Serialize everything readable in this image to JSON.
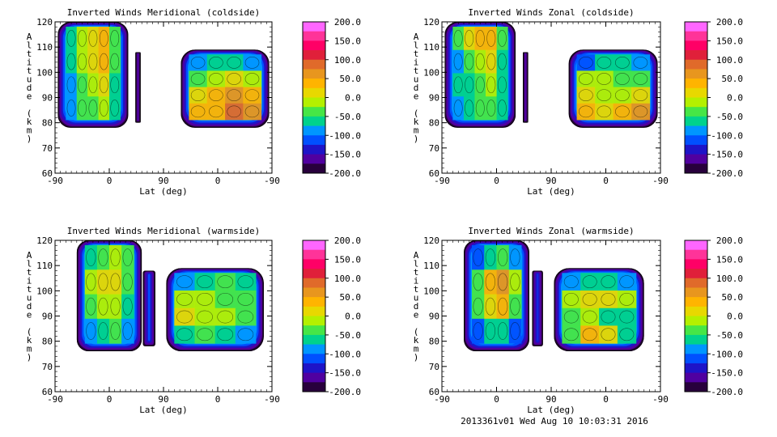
{
  "colorbar": {
    "labels": [
      "200.0",
      "150.0",
      "100.0",
      "50.0",
      "0.0",
      "-50.0",
      "-100.0",
      "-150.0",
      "-200.0"
    ],
    "colors": [
      "#ff66ff",
      "#ff3399",
      "#ff0066",
      "#e0203a",
      "#e06a2a",
      "#e8961e",
      "#ffb400",
      "#e8d800",
      "#b4f000",
      "#46e646",
      "#00d28c",
      "#0096ff",
      "#0050ff",
      "#1e14c8",
      "#5000a0",
      "#28003c"
    ]
  },
  "footer": {
    "stamp": "2013361v01 Wed Aug 10 10:03:31 2016"
  },
  "chart_data": [
    {
      "type": "heatmap",
      "title": "Inverted Winds Meridional (coldside)",
      "xlabel": "Lat (deg)",
      "ylabel": "Altitude (km)",
      "xticks": [
        "-90",
        "0",
        "90",
        "0",
        "-90"
      ],
      "yticks": [
        "120",
        "110",
        "100",
        "90",
        "80",
        "70",
        "60"
      ],
      "xlim": [
        0,
        4
      ],
      "ylim": [
        60,
        120
      ],
      "cbar_range": [
        -200,
        200
      ],
      "regions": [
        {
          "x0": 0.05,
          "x1": 1.35,
          "y0": 78,
          "y1": 120,
          "values": [
            [
              -60,
              -20,
              10,
              40,
              -30
            ],
            [
              -70,
              -10,
              20,
              50,
              -40
            ],
            [
              -80,
              -30,
              -10,
              20,
              -50
            ],
            [
              -90,
              -40,
              -30,
              0,
              -60
            ]
          ]
        },
        {
          "x0": 1.48,
          "x1": 1.58,
          "y0": 80,
          "y1": 108,
          "values": [
            [
              -90,
              -120
            ],
            [
              -60,
              -110
            ],
            [
              -80,
              -100
            ]
          ]
        },
        {
          "x0": 2.32,
          "x1": 3.95,
          "y0": 78,
          "y1": 109,
          "values": [
            [
              -90,
              -70,
              -50,
              -80
            ],
            [
              -30,
              -20,
              10,
              -20
            ],
            [
              20,
              30,
              60,
              40
            ],
            [
              40,
              50,
              80,
              60
            ]
          ]
        }
      ]
    },
    {
      "type": "heatmap",
      "title": "Inverted Winds Zonal (coldside)",
      "xlabel": "Lat (deg)",
      "ylabel": "Altitude (km)",
      "xticks": [
        "-90",
        "0",
        "90",
        "0",
        "-90"
      ],
      "yticks": [
        "120",
        "110",
        "100",
        "90",
        "80",
        "70",
        "60"
      ],
      "xlim": [
        0,
        4
      ],
      "ylim": [
        60,
        120
      ],
      "cbar_range": [
        -200,
        200
      ],
      "regions": [
        {
          "x0": 0.05,
          "x1": 1.35,
          "y0": 78,
          "y1": 120,
          "values": [
            [
              -40,
              20,
              50,
              30,
              -30
            ],
            [
              -80,
              -40,
              -10,
              10,
              -50
            ],
            [
              -70,
              -50,
              -30,
              -20,
              -60
            ],
            [
              -90,
              -60,
              -40,
              -30,
              -70
            ]
          ]
        },
        {
          "x0": 1.48,
          "x1": 1.58,
          "y0": 80,
          "y1": 108,
          "values": [
            [
              -90,
              -130
            ],
            [
              -60,
              -120
            ],
            [
              -80,
              -110
            ]
          ]
        },
        {
          "x0": 2.32,
          "x1": 3.95,
          "y0": 78,
          "y1": 109,
          "values": [
            [
              -100,
              -60,
              -50,
              -80
            ],
            [
              -20,
              -10,
              -30,
              -40
            ],
            [
              10,
              -20,
              -10,
              20
            ],
            [
              40,
              20,
              30,
              60
            ]
          ]
        }
      ]
    },
    {
      "type": "heatmap",
      "title": "Inverted Winds Meridional (warmside)",
      "xlabel": "Lat (deg)",
      "ylabel": "Altitude (km)",
      "xticks": [
        "-90",
        "0",
        "90",
        "0",
        "-90"
      ],
      "yticks": [
        "120",
        "110",
        "100",
        "90",
        "80",
        "70",
        "60"
      ],
      "xlim": [
        0,
        4
      ],
      "ylim": [
        60,
        120
      ],
      "cbar_range": [
        -200,
        200
      ],
      "regions": [
        {
          "x0": 0.4,
          "x1": 1.6,
          "y0": 76,
          "y1": 120,
          "values": [
            [
              -60,
              -30,
              -10,
              -40
            ],
            [
              -20,
              10,
              20,
              -30
            ],
            [
              -40,
              -20,
              0,
              -50
            ],
            [
              -80,
              -60,
              -40,
              -90
            ]
          ]
        },
        {
          "x0": 1.62,
          "x1": 1.85,
          "y0": 78,
          "y1": 108,
          "values": [
            [
              -100,
              -120
            ],
            [
              -80,
              -150
            ],
            [
              -110,
              -120
            ]
          ]
        },
        {
          "x0": 2.05,
          "x1": 3.85,
          "y0": 76,
          "y1": 109,
          "values": [
            [
              -80,
              -60,
              -40,
              -70
            ],
            [
              -20,
              -10,
              -30,
              -40
            ],
            [
              10,
              -20,
              0,
              -30
            ],
            [
              -60,
              -40,
              -50,
              -90
            ]
          ]
        }
      ]
    },
    {
      "type": "heatmap",
      "title": "Inverted Winds Zonal (warmside)",
      "xlabel": "Lat (deg)",
      "ylabel": "Altitude (km)",
      "xticks": [
        "-90",
        "0",
        "90",
        "0",
        "-90"
      ],
      "yticks": [
        "120",
        "110",
        "100",
        "90",
        "80",
        "70",
        "60"
      ],
      "xlim": [
        0,
        4
      ],
      "ylim": [
        60,
        120
      ],
      "cbar_range": [
        -200,
        200
      ],
      "regions": [
        {
          "x0": 0.4,
          "x1": 1.6,
          "y0": 76,
          "y1": 120,
          "values": [
            [
              -120,
              -60,
              -40,
              -90
            ],
            [
              -40,
              30,
              60,
              -20
            ],
            [
              -30,
              20,
              40,
              -40
            ],
            [
              -100,
              -70,
              -50,
              -110
            ]
          ]
        },
        {
          "x0": 1.65,
          "x1": 1.85,
          "y0": 78,
          "y1": 108,
          "values": [
            [
              -110,
              -130
            ],
            [
              -90,
              -160
            ],
            [
              -110,
              -130
            ]
          ]
        },
        {
          "x0": 2.05,
          "x1": 3.7,
          "y0": 76,
          "y1": 109,
          "values": [
            [
              -90,
              -70,
              -60,
              -80
            ],
            [
              -10,
              20,
              10,
              -20
            ],
            [
              -40,
              -20,
              -60,
              -70
            ],
            [
              -30,
              50,
              20,
              -60
            ]
          ]
        }
      ]
    }
  ]
}
